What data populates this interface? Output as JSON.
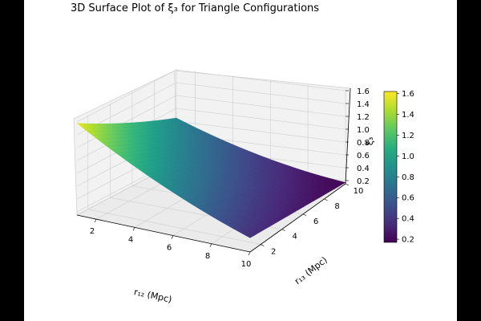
{
  "chart_data": {
    "type": "surface",
    "title": "3D Surface Plot of ξ₃ for Triangle Configurations",
    "xlabel": "r₁₂ (Mpc)",
    "ylabel": "r₁₃ (Mpc)",
    "zlabel": "ξ₃",
    "colormap": "viridis",
    "x_range": [
      1,
      10
    ],
    "y_range": [
      1,
      10
    ],
    "z_range": [
      0.15,
      1.6
    ],
    "x_ticks": [
      "2",
      "4",
      "6",
      "8",
      "10"
    ],
    "y_ticks": [
      "2",
      "4",
      "6",
      "8",
      "10"
    ],
    "z_ticks": [
      "0.2",
      "0.4",
      "0.6",
      "0.8",
      "1.0",
      "1.2",
      "1.4",
      "1.6"
    ],
    "grid": true,
    "surface_corners": [
      {
        "x": 1,
        "y": 1,
        "z": 1.58
      },
      {
        "x": 10,
        "y": 1,
        "z": 0.37
      },
      {
        "x": 1,
        "y": 10,
        "z": 0.85
      },
      {
        "x": 10,
        "y": 10,
        "z": 0.17
      }
    ],
    "colorbar": {
      "position": "right",
      "range": [
        0.17,
        1.62
      ],
      "ticks": [
        "0.2",
        "0.4",
        "0.6",
        "0.8",
        "1.0",
        "1.2",
        "1.4",
        "1.6"
      ]
    }
  }
}
